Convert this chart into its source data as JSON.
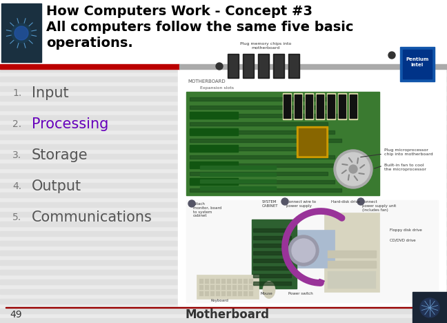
{
  "title_line1": "How Computers Work - Concept #3",
  "title_line2": "All computers follow the same five basic",
  "title_line3": "operations.",
  "items": [
    {
      "num": "1.",
      "text": "Input",
      "color": "#555555"
    },
    {
      "num": "2.",
      "text": "Processing",
      "color": "#6600bb"
    },
    {
      "num": "3.",
      "text": "Storage",
      "color": "#555555"
    },
    {
      "num": "4.",
      "text": "Output",
      "color": "#555555"
    },
    {
      "num": "5.",
      "text": "Communications",
      "color": "#555555"
    }
  ],
  "footer_text": "Motherboard",
  "page_num": "49",
  "bg_color": "#ebebeb",
  "stripe_light": "#ebebeb",
  "stripe_dark": "#e0e0e0",
  "header_bg": "#ffffff",
  "red_bar_color": "#bb0000",
  "gray_bar_color": "#aaaaaa",
  "title_color": "#000000",
  "header_img_color": "#1a3040",
  "pcb_green": "#3a7a30",
  "pcb_dark": "#1a4a1a",
  "footer_line_color": "#990000"
}
